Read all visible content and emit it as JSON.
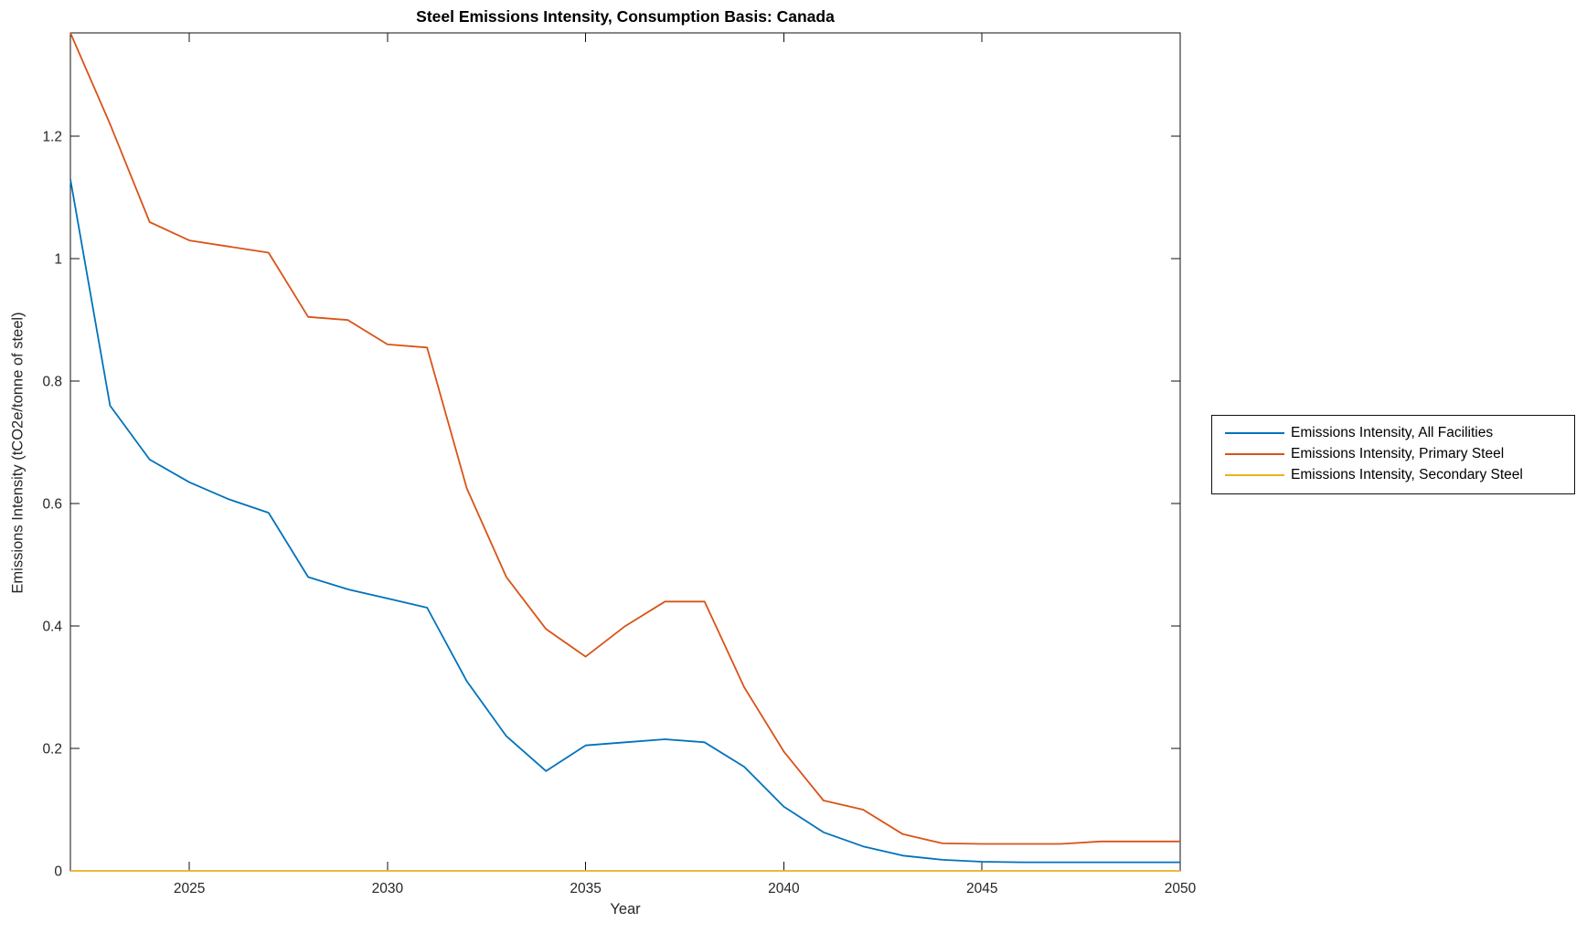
{
  "title": "Steel Emissions Intensity, Consumption Basis: Canada",
  "chart_data": {
    "type": "line",
    "title": "Steel Emissions Intensity, Consumption Basis: Canada",
    "xlabel": "Year",
    "ylabel": "Emissions Intensity (tCO2e/tonne of steel)",
    "xlim": [
      2022,
      2050
    ],
    "ylim": [
      0,
      1.369
    ],
    "xticks": [
      2025,
      2030,
      2035,
      2040,
      2045,
      2050
    ],
    "xtick_labels": [
      "2025",
      "2030",
      "2035",
      "2040",
      "2045",
      "2050"
    ],
    "yticks": [
      0,
      0.2,
      0.4,
      0.6,
      0.8,
      1,
      1.2
    ],
    "ytick_labels": [
      "0",
      "0.2",
      "0.4",
      "0.6",
      "0.8",
      "1",
      "1.2"
    ],
    "grid": false,
    "legend_position": "right-outside",
    "x": [
      2022,
      2023,
      2024,
      2025,
      2026,
      2027,
      2028,
      2029,
      2030,
      2031,
      2032,
      2033,
      2034,
      2035,
      2036,
      2037,
      2038,
      2039,
      2040,
      2041,
      2042,
      2043,
      2044,
      2045,
      2046,
      2047,
      2048,
      2049,
      2050
    ],
    "series": [
      {
        "name": "Emissions Intensity, All Facilities",
        "color": "#0072BD",
        "values": [
          1.13,
          0.76,
          0.672,
          0.635,
          0.607,
          0.585,
          0.48,
          0.46,
          0.445,
          0.43,
          0.31,
          0.22,
          0.163,
          0.205,
          0.21,
          0.215,
          0.21,
          0.17,
          0.105,
          0.063,
          0.04,
          0.025,
          0.018,
          0.015,
          0.014,
          0.014,
          0.014,
          0.014,
          0.014
        ]
      },
      {
        "name": "Emissions Intensity, Primary Steel",
        "color": "#D95319",
        "values": [
          1.369,
          1.22,
          1.06,
          1.03,
          1.02,
          1.01,
          0.905,
          0.9,
          0.86,
          0.855,
          0.625,
          0.48,
          0.395,
          0.35,
          0.4,
          0.44,
          0.44,
          0.3,
          0.195,
          0.115,
          0.1,
          0.06,
          0.045,
          0.044,
          0.044,
          0.044,
          0.048,
          0.048,
          0.048
        ]
      },
      {
        "name": "Emissions Intensity, Secondary Steel",
        "color": "#EDB120",
        "values": [
          0,
          0,
          0,
          0,
          0,
          0,
          0,
          0,
          0,
          0,
          0,
          0,
          0,
          0,
          0,
          0,
          0,
          0,
          0,
          0,
          0,
          0,
          0,
          0,
          0,
          0,
          0,
          0,
          0
        ]
      }
    ]
  }
}
